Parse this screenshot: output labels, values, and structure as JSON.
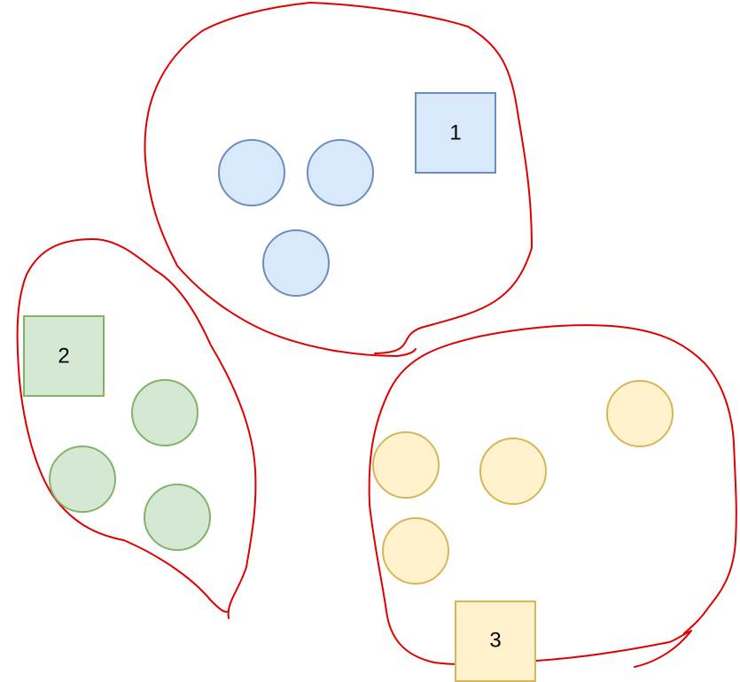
{
  "colors": {
    "background": "#ffffff",
    "blue_fill": "#dae8fc",
    "blue_stroke": "#6c8ebf",
    "green_fill": "#d5e8d4",
    "green_stroke": "#82b366",
    "yellow_fill": "#fff2cc",
    "yellow_stroke": "#d6b656",
    "annotation_stroke": "#e00000",
    "text": "#000000"
  },
  "groups": [
    {
      "color": "blue",
      "square_label": "1",
      "circle_count": 3
    },
    {
      "color": "green",
      "square_label": "2",
      "circle_count": 3
    },
    {
      "color": "yellow",
      "square_label": "3",
      "circle_count": 4
    }
  ]
}
